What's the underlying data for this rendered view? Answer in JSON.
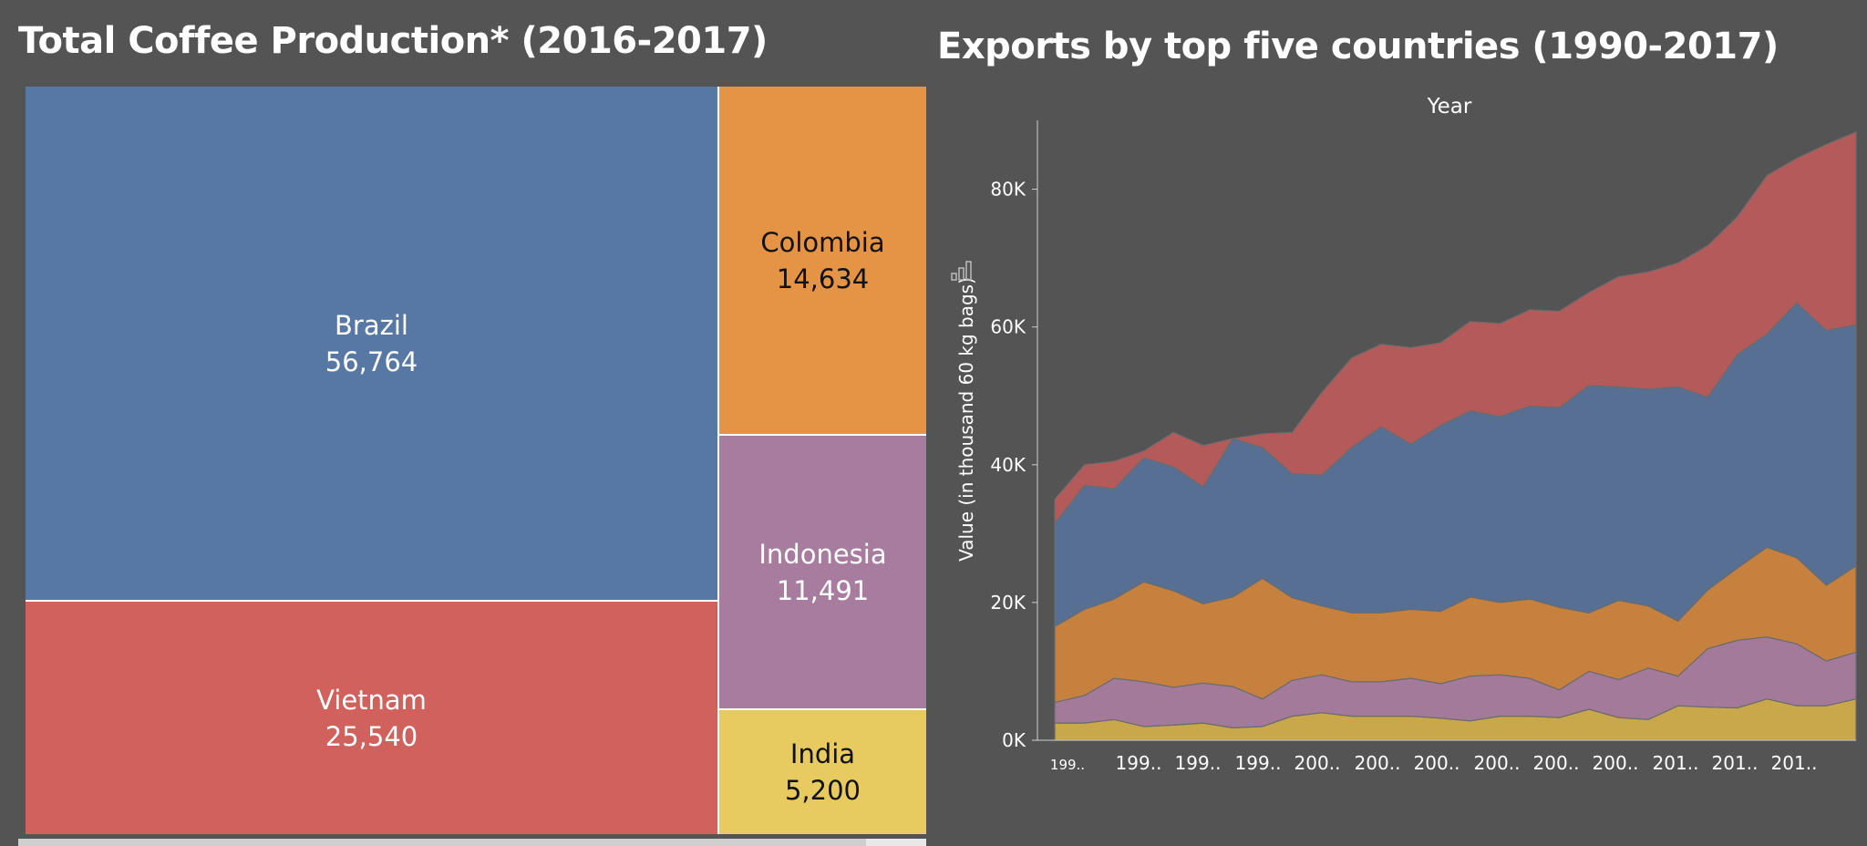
{
  "treemap": {
    "title": "Total Coffee Production* (2016-2017)",
    "items": [
      {
        "name": "Brazil",
        "value": "56,764",
        "color": "#5778a4"
      },
      {
        "name": "Vietnam",
        "value": "25,540",
        "color": "#d1615d"
      },
      {
        "name": "Colombia",
        "value": "14,634",
        "color": "#e49444"
      },
      {
        "name": "Indonesia",
        "value": "11,491",
        "color": "#a87c9f"
      },
      {
        "name": "India",
        "value": "5,200",
        "color": "#e7ca60"
      }
    ]
  },
  "chart_data": {
    "type": "area",
    "stacked": true,
    "title": "Exports by top five countries (1990-2017)",
    "xlabel": "Year",
    "ylabel": "Value (in thousand 60 kg bags)",
    "ylim": [
      0,
      90000
    ],
    "yticks": [
      "0K",
      "20K",
      "40K",
      "60K",
      "80K"
    ],
    "yticks_values": [
      0,
      20000,
      40000,
      60000,
      80000
    ],
    "x": [
      1990,
      1991,
      1992,
      1993,
      1994,
      1995,
      1996,
      1997,
      1998,
      1999,
      2000,
      2001,
      2002,
      2003,
      2004,
      2005,
      2006,
      2007,
      2008,
      2009,
      2010,
      2011,
      2012,
      2013,
      2014,
      2015,
      2016,
      2017
    ],
    "xtick_labels": [
      "199..",
      "199..",
      "199..",
      "199..",
      "200..",
      "200..",
      "200..",
      "200..",
      "200..",
      "200..",
      "201..",
      "201..",
      "201.."
    ],
    "series": [
      {
        "color": "#c9a84b",
        "values": [
          2500,
          2500,
          3000,
          2000,
          2200,
          2500,
          1800,
          2000,
          3500,
          4000,
          3500,
          3500,
          3500,
          3200,
          2800,
          3500,
          3500,
          3300,
          4500,
          3300,
          3000,
          5000,
          4800,
          4700,
          6000,
          5000,
          5000,
          6000
        ]
      },
      {
        "color": "#a47a9b",
        "values": [
          3000,
          4000,
          6000,
          6500,
          5500,
          5800,
          6000,
          4000,
          5200,
          5500,
          5000,
          5000,
          5500,
          5000,
          6500,
          6000,
          5500,
          4000,
          5500,
          5500,
          7500,
          4300,
          8500,
          9800,
          9000,
          9000,
          6500,
          6800
        ]
      },
      {
        "color": "#c7813f",
        "values": [
          11000,
          12500,
          11500,
          14500,
          14000,
          11500,
          13000,
          17500,
          12000,
          10000,
          10000,
          10000,
          10000,
          10500,
          11500,
          10500,
          11500,
          12000,
          8500,
          11500,
          9000,
          8000,
          8500,
          10500,
          13000,
          12500,
          11000,
          12500
        ]
      },
      {
        "color": "#566f93",
        "values": [
          15000,
          18000,
          16000,
          18000,
          18000,
          17000,
          23000,
          19000,
          18000,
          19000,
          24000,
          27000,
          24000,
          27000,
          27000,
          27000,
          28000,
          29000,
          33000,
          31000,
          31500,
          34000,
          28000,
          31000,
          31000,
          37000,
          37000,
          35000
        ]
      },
      {
        "color": "#b55a5a",
        "values": [
          3500,
          3000,
          4000,
          1000,
          5000,
          6000,
          0,
          2000,
          6000,
          12000,
          13000,
          12000,
          14000,
          12000,
          13000,
          13500,
          14000,
          14000,
          13500,
          16000,
          17000,
          18000,
          22000,
          20000,
          23000,
          21000,
          27000,
          28000
        ]
      }
    ]
  }
}
